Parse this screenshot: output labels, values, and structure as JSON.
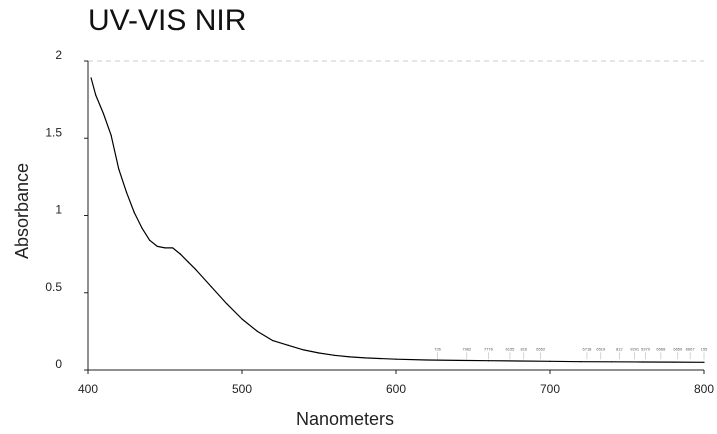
{
  "chart_data": {
    "type": "line",
    "title": "UV-VIS NIR",
    "xlabel": "Nanometers",
    "ylabel": "Absorbance",
    "xlim": [
      400,
      800
    ],
    "ylim": [
      0,
      2
    ],
    "x_ticks": [
      "400",
      "500",
      "600",
      "700",
      "800"
    ],
    "y_ticks": [
      "0",
      "0.5",
      "1",
      "1.5",
      "2"
    ],
    "grid": "dashed line at y=2 only",
    "series": [
      {
        "color": "#000000",
        "x": [
          402,
          405,
          410,
          415,
          420,
          425,
          430,
          435,
          440,
          445,
          450,
          455,
          460,
          465,
          470,
          480,
          490,
          500,
          510,
          520,
          530,
          540,
          550,
          560,
          570,
          580,
          600,
          620,
          640,
          660,
          680,
          700,
          720,
          740,
          760,
          780,
          800
        ],
        "y": [
          1.89,
          1.78,
          1.66,
          1.52,
          1.3,
          1.15,
          1.02,
          0.92,
          0.84,
          0.8,
          0.79,
          0.79,
          0.75,
          0.7,
          0.65,
          0.54,
          0.43,
          0.33,
          0.25,
          0.19,
          0.16,
          0.13,
          0.11,
          0.095,
          0.085,
          0.078,
          0.07,
          0.065,
          0.062,
          0.06,
          0.058,
          0.056,
          0.054,
          0.053,
          0.052,
          0.051,
          0.05
        ]
      }
    ],
    "peak_labels": [
      {
        "x": 627,
        "text": "726"
      },
      {
        "x": 646,
        "text": "7962"
      },
      {
        "x": 660,
        "text": "7776"
      },
      {
        "x": 674,
        "text": "6155"
      },
      {
        "x": 683,
        "text": "816"
      },
      {
        "x": 694,
        "text": "6552"
      },
      {
        "x": 724,
        "text": "6718"
      },
      {
        "x": 733,
        "text": "6519"
      },
      {
        "x": 745,
        "text": "812"
      },
      {
        "x": 755,
        "text": "9291"
      },
      {
        "x": 762,
        "text": "5370"
      },
      {
        "x": 772,
        "text": "6568"
      },
      {
        "x": 783,
        "text": "6650"
      },
      {
        "x": 791,
        "text": "6667"
      },
      {
        "x": 800,
        "text": "155"
      }
    ]
  }
}
